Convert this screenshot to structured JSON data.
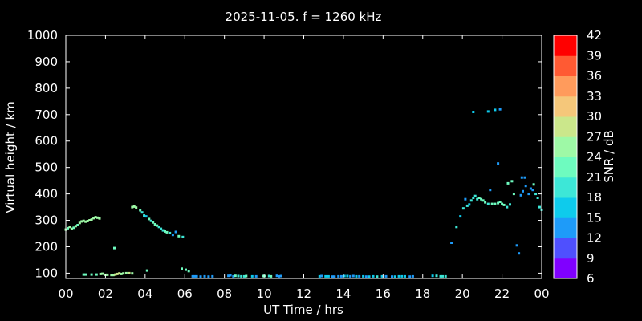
{
  "chart_data": {
    "type": "scatter",
    "title": "2025-11-05. f = 1260 kHz",
    "xlabel": "UT Time / hrs",
    "ylabel": "Virtual height / km",
    "xlim": [
      0,
      24
    ],
    "ylim": [
      80,
      1000
    ],
    "x_ticks": [
      "00",
      "02",
      "04",
      "06",
      "08",
      "10",
      "12",
      "14",
      "16",
      "18",
      "20",
      "22",
      "00"
    ],
    "y_ticks": [
      "100",
      "200",
      "300",
      "400",
      "500",
      "600",
      "700",
      "800",
      "900",
      "1000"
    ],
    "grid": false,
    "colorbar": {
      "label": "SNR / dB",
      "range": [
        6,
        42
      ],
      "ticks": [
        "6",
        "9",
        "12",
        "15",
        "18",
        "21",
        "24",
        "27",
        "30",
        "33",
        "36",
        "39",
        "42"
      ],
      "colors": [
        "#8000ff",
        "#4f50fe",
        "#1e9bf9",
        "#0ecbec",
        "#3de7d7",
        "#6efbbf",
        "#9ef9a6",
        "#cbe78b",
        "#f5c77a",
        "#ff9b5c",
        "#ff5a33",
        "#ff0000"
      ]
    },
    "series": [
      {
        "points": [
          [
            0.0,
            265,
            24
          ],
          [
            0.1,
            270,
            23
          ],
          [
            0.2,
            275,
            24
          ],
          [
            0.3,
            268,
            24
          ],
          [
            0.4,
            272,
            23
          ],
          [
            0.5,
            278,
            24
          ],
          [
            0.6,
            282,
            22
          ],
          [
            0.7,
            290,
            24
          ],
          [
            0.8,
            296,
            24
          ],
          [
            0.9,
            298,
            24
          ],
          [
            1.0,
            295,
            24
          ],
          [
            1.1,
            297,
            24
          ],
          [
            1.2,
            300,
            25
          ],
          [
            1.3,
            303,
            24
          ],
          [
            1.4,
            308,
            24
          ],
          [
            1.5,
            312,
            25
          ],
          [
            1.6,
            310,
            24
          ],
          [
            1.7,
            307,
            24
          ],
          [
            3.35,
            350,
            24
          ],
          [
            3.45,
            352,
            25
          ],
          [
            3.55,
            348,
            24
          ],
          [
            3.75,
            338,
            21
          ],
          [
            3.85,
            330,
            18
          ],
          [
            3.95,
            318,
            18
          ],
          [
            4.05,
            315,
            17
          ],
          [
            4.2,
            305,
            21
          ],
          [
            4.3,
            298,
            20
          ],
          [
            4.4,
            292,
            21
          ],
          [
            4.5,
            285,
            21
          ],
          [
            4.6,
            280,
            21
          ],
          [
            4.7,
            275,
            19
          ],
          [
            4.8,
            268,
            19
          ],
          [
            4.9,
            262,
            20
          ],
          [
            5.0,
            258,
            21
          ],
          [
            5.1,
            255,
            21
          ],
          [
            5.25,
            252,
            20
          ],
          [
            5.4,
            245,
            14
          ],
          [
            5.55,
            256,
            14
          ],
          [
            5.7,
            240,
            21
          ],
          [
            5.9,
            237,
            20
          ],
          [
            0.9,
            95,
            21
          ],
          [
            1.0,
            95,
            21
          ],
          [
            1.3,
            95,
            21
          ],
          [
            1.55,
            95,
            21
          ],
          [
            1.75,
            97,
            25
          ],
          [
            1.85,
            98,
            26
          ],
          [
            2.0,
            94,
            26
          ],
          [
            2.1,
            94,
            25
          ],
          [
            2.3,
            93,
            25
          ],
          [
            2.4,
            93,
            24
          ],
          [
            2.5,
            95,
            27
          ],
          [
            2.6,
            97,
            27
          ],
          [
            2.7,
            99,
            27
          ],
          [
            2.8,
            97,
            26
          ],
          [
            2.9,
            99,
            26
          ],
          [
            3.05,
            100,
            26
          ],
          [
            3.2,
            100,
            27
          ],
          [
            3.35,
            99,
            26
          ],
          [
            2.45,
            195,
            21
          ],
          [
            4.1,
            110,
            21
          ],
          [
            5.85,
            117,
            23
          ],
          [
            6.05,
            113,
            23
          ],
          [
            6.2,
            108,
            21
          ],
          [
            6.4,
            88,
            14
          ],
          [
            6.5,
            88,
            12
          ],
          [
            6.6,
            88,
            14
          ],
          [
            6.8,
            87,
            12
          ],
          [
            7.0,
            88,
            12
          ],
          [
            7.2,
            87,
            14
          ],
          [
            7.4,
            88,
            12
          ],
          [
            8.2,
            90,
            12
          ],
          [
            8.3,
            92,
            14
          ],
          [
            8.45,
            88,
            13
          ],
          [
            8.55,
            90,
            21
          ],
          [
            8.7,
            89,
            18
          ],
          [
            8.85,
            88,
            18
          ],
          [
            9.0,
            88,
            20
          ],
          [
            9.1,
            89,
            21
          ],
          [
            9.4,
            88,
            15
          ],
          [
            9.6,
            88,
            14
          ],
          [
            9.95,
            89,
            21
          ],
          [
            10.05,
            89,
            21
          ],
          [
            10.25,
            89,
            20
          ],
          [
            10.35,
            88,
            21
          ],
          [
            10.65,
            90,
            14
          ],
          [
            10.75,
            88,
            13
          ],
          [
            10.85,
            89,
            12
          ],
          [
            12.8,
            88,
            15
          ],
          [
            12.9,
            89,
            14
          ],
          [
            13.1,
            88,
            15
          ],
          [
            13.25,
            88,
            15
          ],
          [
            13.45,
            87,
            12
          ],
          [
            13.55,
            87,
            13
          ],
          [
            13.75,
            88,
            14
          ],
          [
            13.9,
            88,
            14
          ],
          [
            14.05,
            89,
            15
          ],
          [
            14.2,
            89,
            15
          ],
          [
            14.35,
            88,
            14
          ],
          [
            14.5,
            89,
            12
          ],
          [
            14.65,
            88,
            15
          ],
          [
            14.8,
            88,
            14
          ],
          [
            15.0,
            88,
            15
          ],
          [
            15.15,
            87,
            14
          ],
          [
            15.3,
            87,
            15
          ],
          [
            15.5,
            88,
            15
          ],
          [
            15.7,
            87,
            20
          ],
          [
            15.95,
            88,
            17
          ],
          [
            16.15,
            88,
            14
          ],
          [
            16.45,
            87,
            14
          ],
          [
            16.6,
            87,
            15
          ],
          [
            16.8,
            88,
            15
          ],
          [
            16.95,
            88,
            16
          ],
          [
            17.1,
            88,
            15
          ],
          [
            17.35,
            87,
            14
          ],
          [
            17.5,
            88,
            12
          ],
          [
            18.5,
            90,
            15
          ],
          [
            18.7,
            90,
            18
          ],
          [
            18.9,
            88,
            18
          ],
          [
            19.0,
            88,
            18
          ],
          [
            19.15,
            88,
            18
          ],
          [
            19.45,
            215,
            12
          ],
          [
            19.7,
            275,
            18
          ],
          [
            19.9,
            315,
            17
          ],
          [
            20.05,
            345,
            18
          ],
          [
            20.15,
            380,
            14
          ],
          [
            20.25,
            355,
            18
          ],
          [
            20.35,
            360,
            15
          ],
          [
            20.45,
            375,
            18
          ],
          [
            20.55,
            385,
            19
          ],
          [
            20.65,
            392,
            18
          ],
          [
            20.75,
            380,
            18
          ],
          [
            20.85,
            385,
            21
          ],
          [
            20.95,
            380,
            21
          ],
          [
            21.05,
            375,
            21
          ],
          [
            21.15,
            368,
            23
          ],
          [
            21.3,
            362,
            19
          ],
          [
            21.4,
            415,
            14
          ],
          [
            21.5,
            362,
            21
          ],
          [
            21.65,
            362,
            23
          ],
          [
            21.8,
            365,
            21
          ],
          [
            21.9,
            370,
            22
          ],
          [
            22.0,
            362,
            21
          ],
          [
            22.1,
            358,
            21
          ],
          [
            22.25,
            350,
            19
          ],
          [
            22.4,
            360,
            18
          ],
          [
            22.3,
            440,
            21
          ],
          [
            22.5,
            448,
            22
          ],
          [
            22.6,
            400,
            21
          ],
          [
            22.75,
            205,
            14
          ],
          [
            22.85,
            175,
            12
          ],
          [
            22.95,
            395,
            14
          ],
          [
            23.05,
            410,
            12
          ],
          [
            23.15,
            462,
            14
          ],
          [
            23.2,
            430,
            14
          ],
          [
            23.35,
            400,
            14
          ],
          [
            23.45,
            420,
            12
          ],
          [
            23.55,
            415,
            14
          ],
          [
            23.6,
            436,
            21
          ],
          [
            23.7,
            400,
            18
          ],
          [
            23.8,
            385,
            20
          ],
          [
            23.9,
            350,
            18
          ],
          [
            24.0,
            340,
            18
          ],
          [
            23.0,
            462,
            14
          ],
          [
            20.55,
            710,
            15
          ],
          [
            21.3,
            712,
            15
          ],
          [
            21.65,
            718,
            15
          ],
          [
            21.9,
            720,
            14
          ],
          [
            21.8,
            515,
            14
          ]
        ]
      }
    ]
  }
}
